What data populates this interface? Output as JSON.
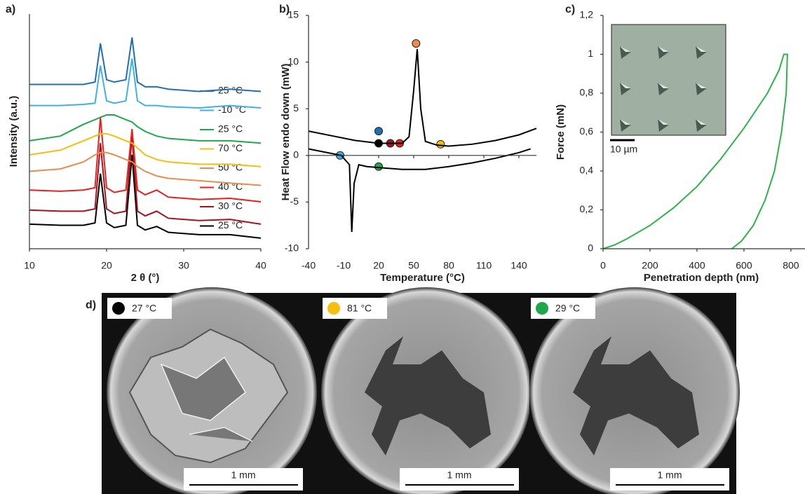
{
  "chart_data": [
    {
      "type": "line",
      "panel_label": "a)",
      "x_label": "2 θ (°)",
      "y_label": "Intensity (a.u.)",
      "xlim": [
        10,
        40
      ],
      "xticks": [
        10,
        20,
        30,
        40
      ],
      "ylim": [
        0,
        100
      ],
      "legend": "right",
      "x": [
        10,
        14,
        17,
        18.5,
        19.2,
        20,
        21,
        22.5,
        23.3,
        24,
        25,
        26.5,
        28,
        32,
        36,
        40
      ],
      "series": [
        {
          "name": "25 °C",
          "color": "#1f6fb5",
          "values": [
            70,
            70,
            70,
            71,
            87.5,
            72,
            71,
            72,
            90,
            71,
            69,
            69,
            68,
            67,
            68,
            67
          ]
        },
        {
          "name": "-10 °C",
          "color": "#3fb0e8",
          "values": [
            61,
            61,
            61.5,
            62,
            78,
            63,
            62,
            63,
            81,
            63,
            61,
            61,
            60.5,
            60,
            61,
            60
          ]
        },
        {
          "name": "25 °C",
          "color": "#1fa84a",
          "values": [
            46,
            48,
            53,
            55,
            56,
            57,
            57,
            55,
            54,
            52,
            50,
            48,
            47,
            46,
            46,
            45
          ]
        },
        {
          "name": "70 °C",
          "color": "#f7bd0f",
          "values": [
            40,
            42,
            46,
            48,
            49,
            49,
            48,
            46,
            45,
            43,
            40,
            38,
            37,
            36,
            36,
            35
          ]
        },
        {
          "name": "50 °C",
          "color": "#ef8a4c",
          "values": [
            33,
            34,
            37,
            40,
            41,
            41,
            40,
            38,
            37,
            35,
            33,
            31,
            30,
            29,
            28,
            27
          ]
        },
        {
          "name": "40 °C",
          "color": "#e8201e",
          "values": [
            25,
            24.5,
            25,
            26,
            56,
            26,
            24,
            25,
            51,
            25,
            23,
            25,
            22,
            21,
            21.5,
            20
          ]
        },
        {
          "name": "30 °C",
          "color": "#a8121d",
          "values": [
            16.5,
            16,
            16,
            17,
            45,
            17,
            15,
            16,
            48,
            16,
            14,
            16,
            13,
            12,
            12.5,
            10.5
          ]
        },
        {
          "name": "25 °C",
          "color": "#000000",
          "values": [
            10.5,
            10,
            10,
            11,
            32,
            11,
            9,
            10,
            40,
            10,
            8,
            9.5,
            7,
            6,
            6,
            4.5
          ]
        }
      ]
    },
    {
      "type": "line",
      "panel_label": "b)",
      "x_label": "Temperature (°C)",
      "y_label": "Heat Flow  endo down (mW)",
      "xlim": [
        -40,
        155
      ],
      "xticks": [
        -40,
        -10,
        20,
        50,
        80,
        110,
        140
      ],
      "ylim": [
        -10,
        15
      ],
      "yticks": [
        -10,
        -5,
        0,
        5,
        10,
        15
      ],
      "series": [
        {
          "color": "#000000",
          "x": [
            -40,
            -20,
            0,
            20,
            40,
            46,
            50,
            53,
            56,
            60,
            70,
            80,
            100,
            120,
            140,
            155
          ],
          "values": [
            2.6,
            2.1,
            1.6,
            1.3,
            1.3,
            2,
            7,
            11.4,
            5,
            1.5,
            1.1,
            1.0,
            1.2,
            1.6,
            2.2,
            2.9
          ]
        },
        {
          "color": "#000000",
          "x": [
            -40,
            -20,
            -12,
            -5,
            -3,
            -1,
            3,
            10,
            20,
            40,
            60,
            80,
            100,
            120,
            140,
            150
          ],
          "values": [
            0.7,
            0.2,
            0,
            -1,
            -8.2,
            -3,
            -1,
            -1.2,
            -1.3,
            -1.5,
            -1.5,
            -1.2,
            -0.8,
            -0.3,
            0.3,
            0.7
          ]
        }
      ],
      "markers": [
        {
          "x": 20,
          "y": 2.6,
          "color": "#1f6fb5"
        },
        {
          "x": 20,
          "y": 1.3,
          "color": "#000000"
        },
        {
          "x": 30,
          "y": 1.3,
          "color": "#a8121d"
        },
        {
          "x": 38,
          "y": 1.3,
          "color": "#e8201e"
        },
        {
          "x": 52,
          "y": 12,
          "color": "#ef8a4c"
        },
        {
          "x": 73,
          "y": 1.2,
          "color": "#f7bd0f"
        },
        {
          "x": -13,
          "y": 0,
          "color": "#3fb0e8"
        },
        {
          "x": 20,
          "y": -1.2,
          "color": "#1fa84a"
        }
      ]
    },
    {
      "type": "line",
      "panel_label": "c)",
      "x_label": "Penetration depth (nm)",
      "y_label": "Force (mN)",
      "inset_label": "10 µm",
      "xlim": [
        0,
        860
      ],
      "xticks": [
        0,
        200,
        400,
        600,
        800
      ],
      "ylim": [
        0,
        1.2
      ],
      "yticks": [
        0,
        {
          "value": 0.2,
          "label": "0,2"
        },
        {
          "value": 0.4,
          "label": "0,4"
        },
        {
          "value": 0.6,
          "label": "0,6"
        },
        {
          "value": 0.8,
          "label": "0,8"
        },
        1,
        {
          "value": 1.2,
          "label": "1,2"
        }
      ],
      "series": [
        {
          "color": "#2db34a",
          "x": [
            0,
            50,
            100,
            200,
            300,
            400,
            500,
            600,
            700,
            750,
            770,
            785,
            780,
            760,
            730,
            690,
            640,
            590,
            548
          ],
          "values": [
            0,
            0.02,
            0.05,
            0.12,
            0.21,
            0.32,
            0.46,
            0.62,
            0.8,
            0.92,
            1.0,
            1.0,
            0.8,
            0.6,
            0.4,
            0.25,
            0.12,
            0.04,
            0
          ]
        }
      ]
    }
  ],
  "micrographs": {
    "panel_label": "d)",
    "images": [
      {
        "temperature": "27 °C",
        "marker_color": "#000000",
        "scale_bar": "1 mm"
      },
      {
        "temperature": "81 °C",
        "marker_color": "#f7bd0f",
        "scale_bar": "1 mm"
      },
      {
        "temperature": "29 °C",
        "marker_color": "#1fa84a",
        "scale_bar": "1 mm"
      }
    ]
  }
}
